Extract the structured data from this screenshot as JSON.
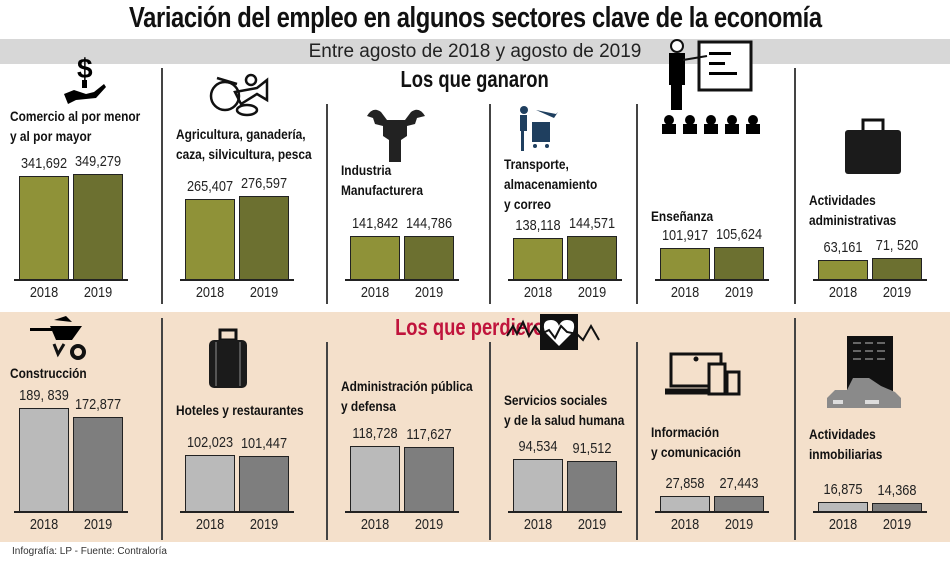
{
  "title": "Variación del empleo en algunos sectores clave de la economía",
  "subtitle": "Entre agosto de 2018 y agosto de 2019",
  "footer": "Infografía: LP  - Fuente: Contraloría",
  "colors": {
    "gained_2018": "#8f9238",
    "gained_2019": "#6c7030",
    "lost_2018": "#bababa",
    "lost_2019": "#7e7e7e",
    "lost_heading": "#c0143c",
    "lost_background": "#f4e0cb"
  },
  "chart_data": [
    {
      "type": "bar",
      "title": "Los que ganaron",
      "categories": [
        "2018",
        "2019"
      ],
      "panels": [
        {
          "label": [
            "Comercio al por menor",
            "y al por mayor"
          ],
          "icon": "money-hand-icon",
          "values": [
            341692,
            349279
          ],
          "value_labels": [
            "341,692",
            "349,279"
          ]
        },
        {
          "label": [
            "Agricultura, ganadería,",
            "caza, silvicultura, pesca"
          ],
          "icon": "agriculture-food-icon",
          "values": [
            265407,
            276597
          ],
          "value_labels": [
            "265,407",
            "276,597"
          ]
        },
        {
          "label": [
            "Industria",
            "Manufacturera"
          ],
          "icon": "fist-wrench-icon",
          "values": [
            141842,
            144786
          ],
          "value_labels": [
            "141,842",
            "144,786"
          ]
        },
        {
          "label": [
            "Transporte,",
            "almacenamiento",
            "y correo"
          ],
          "icon": "transport-cart-plane-icon",
          "values": [
            138118,
            144571
          ],
          "value_labels": [
            "138,118",
            "144,571"
          ]
        },
        {
          "label": [
            "Enseñanza"
          ],
          "icon": "teacher-board-icon",
          "values": [
            101917,
            105624
          ],
          "value_labels": [
            "101,917",
            "105,624"
          ]
        },
        {
          "label": [
            "Actividades",
            "administrativas"
          ],
          "icon": "briefcase-icon",
          "values": [
            63161,
            71520
          ],
          "value_labels": [
            "63,161",
            "71, 520"
          ]
        }
      ]
    },
    {
      "type": "bar",
      "title": "Los que perdieron",
      "categories": [
        "2018",
        "2019"
      ],
      "panels": [
        {
          "label": [
            "Construcción"
          ],
          "icon": "wheelbarrow-icon",
          "values": [
            189839,
            172877
          ],
          "value_labels": [
            "189, 839",
            "172,877"
          ]
        },
        {
          "label": [
            "Hoteles y restaurantes"
          ],
          "icon": "suitcase-icon",
          "values": [
            102023,
            101447
          ],
          "value_labels": [
            "102,023",
            "101,447"
          ]
        },
        {
          "label": [
            "Administración pública",
            "y defensa"
          ],
          "icon": "",
          "values": [
            118728,
            117627
          ],
          "value_labels": [
            "118,728",
            "117,627"
          ]
        },
        {
          "label": [
            "Servicios sociales",
            "y de la salud humana"
          ],
          "icon": "heartbeat-icon",
          "values": [
            94534,
            91512
          ],
          "value_labels": [
            "94,534",
            "91,512"
          ]
        },
        {
          "label": [
            "Información",
            "y comunicación"
          ],
          "icon": "devices-icon",
          "values": [
            27858,
            27443
          ],
          "value_labels": [
            "27,858",
            "27,443"
          ]
        },
        {
          "label": [
            "Actividades",
            "inmobiliarias"
          ],
          "icon": "buildings-icon",
          "values": [
            16875,
            14368
          ],
          "value_labels": [
            "16,875",
            "14,368"
          ]
        }
      ]
    }
  ]
}
